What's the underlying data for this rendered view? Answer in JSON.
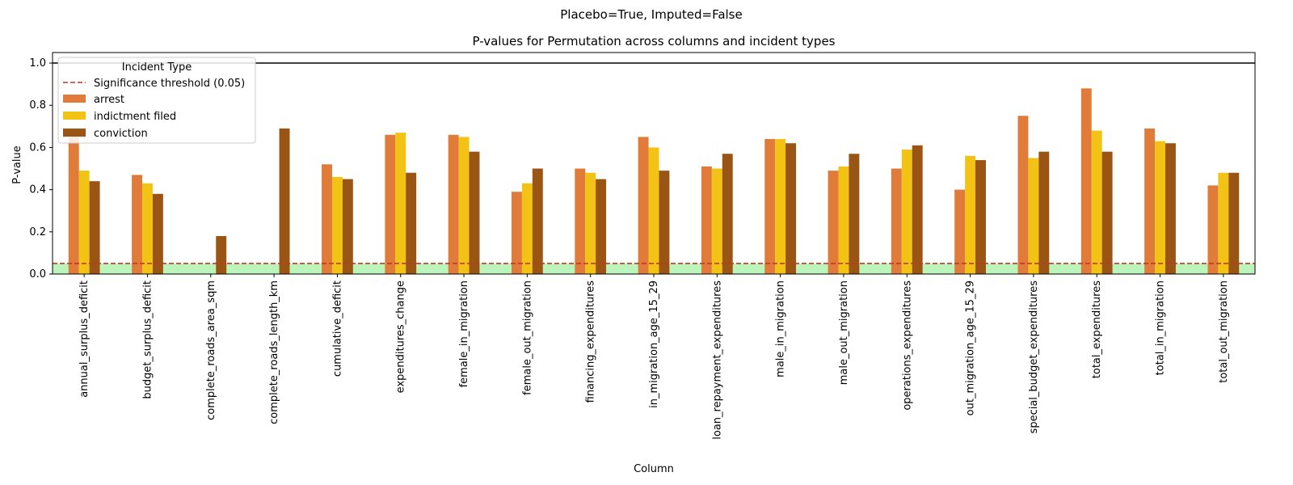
{
  "chart_data": {
    "type": "bar",
    "suptitle": "Placebo=True, Imputed=False",
    "title": "P-values for Permutation across columns and incident types",
    "xlabel": "Column",
    "ylabel": "P-value",
    "ylim": [
      0,
      1.05
    ],
    "yticks": [
      "0.0",
      "0.2",
      "0.4",
      "0.6",
      "0.8",
      "1.0"
    ],
    "categories": [
      "annual_surplus_deficit",
      "budget_surplus_deficit",
      "complete_roads_area_sqm",
      "complete_roads_length_km",
      "cumulative_deficit",
      "expenditures_change",
      "female_in_migration",
      "female_out_migration",
      "financing_expenditures",
      "in_migration_age_15_29",
      "loan_repayment_expenditures",
      "male_in_migration",
      "male_out_migration",
      "operations_expenditures",
      "out_migration_age_15_29",
      "special_budget_expenditures",
      "total_expenditures",
      "total_in_migration",
      "total_out_migration"
    ],
    "series": [
      {
        "name": "arrest",
        "color": "#e07b39",
        "values": [
          0.65,
          0.47,
          0,
          0,
          0.52,
          0.66,
          0.66,
          0.39,
          0.5,
          0.65,
          0.51,
          0.64,
          0.49,
          0.5,
          0.4,
          0.75,
          0.88,
          0.69,
          0.42
        ]
      },
      {
        "name": "indictment filed",
        "color": "#f2c314",
        "values": [
          0.49,
          0.43,
          0,
          0,
          0.46,
          0.67,
          0.65,
          0.43,
          0.48,
          0.6,
          0.5,
          0.64,
          0.51,
          0.59,
          0.56,
          0.55,
          0.68,
          0.63,
          0.48
        ]
      },
      {
        "name": "conviction",
        "color": "#9a5414",
        "values": [
          0.44,
          0.38,
          0.18,
          0.69,
          0.45,
          0.48,
          0.58,
          0.5,
          0.45,
          0.49,
          0.57,
          0.62,
          0.57,
          0.61,
          0.54,
          0.58,
          0.58,
          0.62,
          0.48
        ]
      }
    ],
    "threshold": {
      "value": 0.05,
      "label": "Significance threshold (0.05)",
      "color": "#c0392b"
    },
    "reference_line": 1.0,
    "significance_band_color": "#90ee90",
    "legend": {
      "title": "Incident Type",
      "position": "upper-left"
    },
    "grid": false
  }
}
